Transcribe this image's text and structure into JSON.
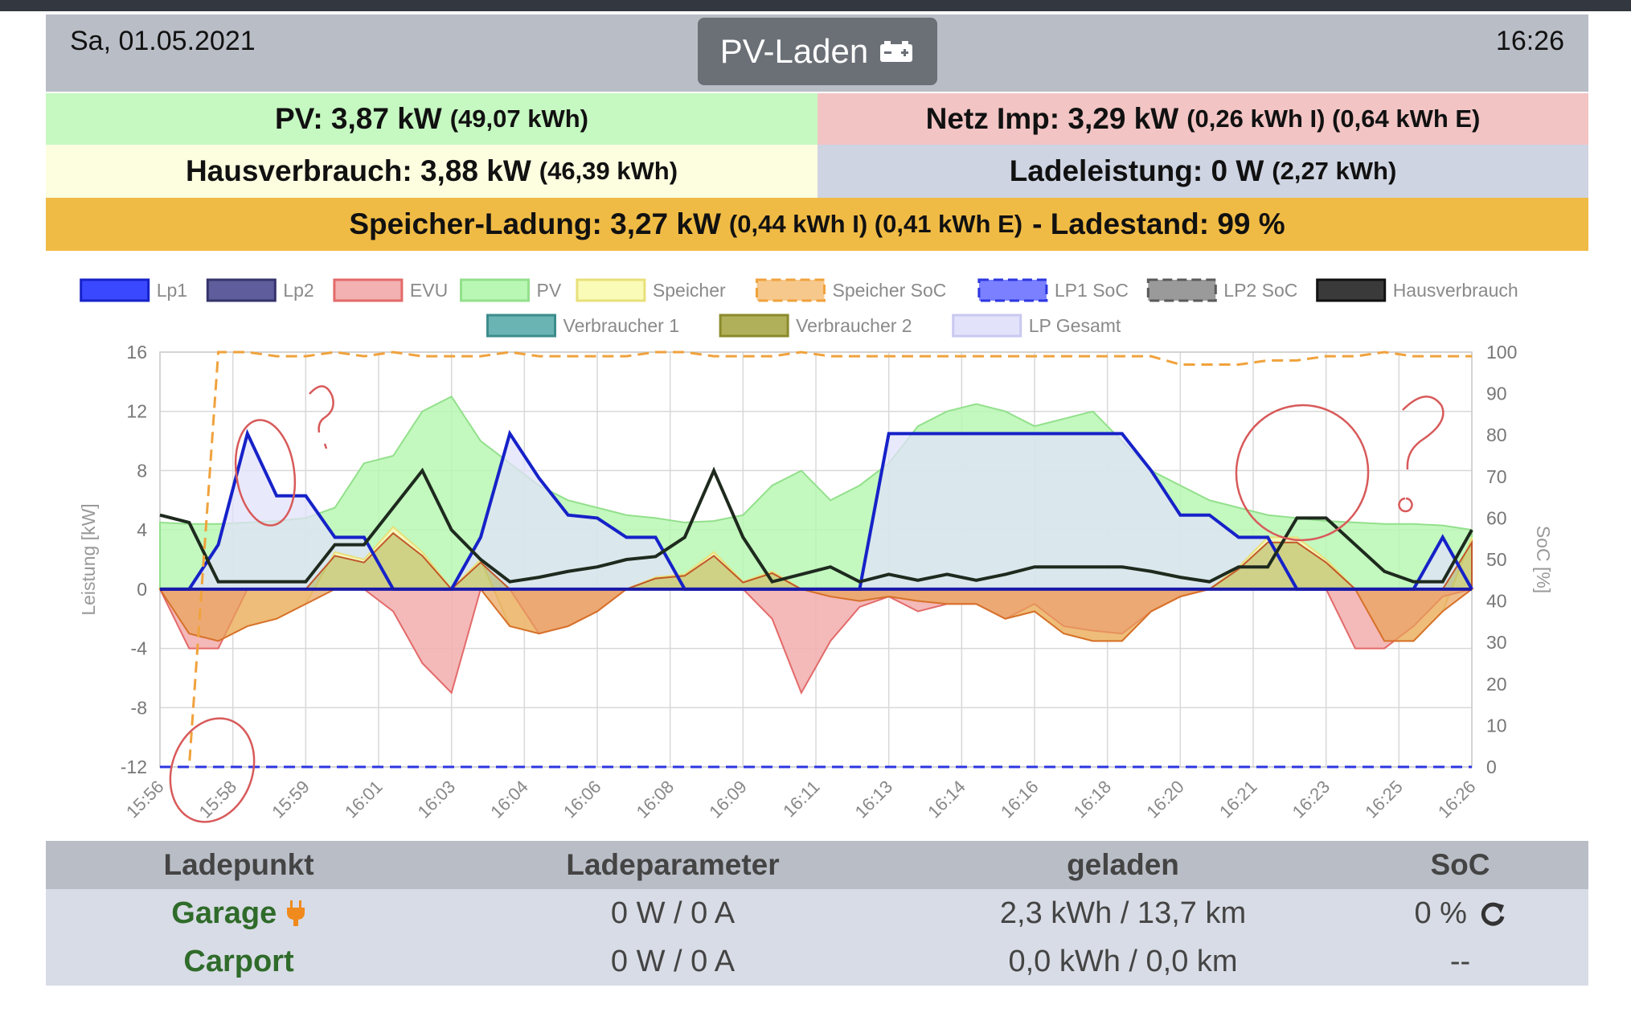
{
  "header": {
    "date": "Sa, 01.05.2021",
    "time": "16:26",
    "mode_label": "PV-Laden",
    "mode_icon": "battery-icon"
  },
  "status": {
    "pv_label": "PV: 3,87 kW",
    "pv_energy": "(49,07 kWh)",
    "netz_label": "Netz Imp: 3,29 kW",
    "netz_energy": "(0,26 kWh I) (0,64 kWh E)",
    "haus_label": "Hausverbrauch: 3,88 kW",
    "haus_energy": "(46,39 kWh)",
    "lade_label": "Ladeleistung: 0 W",
    "lade_energy": "(2,27 kWh)",
    "speicher_label": "Speicher-Ladung: 3,27 kW",
    "speicher_energy": "(0,44 kWh I) (0,41 kWh E)",
    "speicher_suffix": "- Ladestand: 99 %"
  },
  "colors": {
    "pv": "#c6f8c1",
    "netz": "#f2c4c4",
    "haus": "#fdfde0",
    "lade": "#cfd4e2",
    "speicher": "#f0bb45",
    "header": "#b9bdc6",
    "ladepunkt_green": "#2f6b2a",
    "plug_orange": "#f08a1c"
  },
  "chart_data": {
    "type": "area",
    "ylabel": "Leistung [kW]",
    "y2label": "SoC [%]",
    "ylim": [
      -12,
      16
    ],
    "y2lim": [
      0,
      100
    ],
    "yticks": [
      16,
      12,
      8,
      4,
      0,
      -4,
      -8,
      -12
    ],
    "y2ticks": [
      100,
      90,
      80,
      70,
      60,
      50,
      40,
      30,
      20,
      10,
      0
    ],
    "xticks": [
      "15:56",
      "15:58",
      "15:59",
      "16:01",
      "16:03",
      "16:04",
      "16:06",
      "16:08",
      "16:09",
      "16:11",
      "16:13",
      "16:14",
      "16:16",
      "16:18",
      "16:20",
      "16:21",
      "16:23",
      "16:25",
      "16:26"
    ],
    "legend": [
      {
        "name": "Lp1",
        "fill": "#3a48ff",
        "border": "#1622c8",
        "dashed": false
      },
      {
        "name": "Lp2",
        "fill": "#5f5d9c",
        "border": "#35346b",
        "dashed": false
      },
      {
        "name": "EVU",
        "fill": "#f3b1b1",
        "border": "#e36a6a",
        "dashed": false
      },
      {
        "name": "PV",
        "fill": "#b9f7b4",
        "border": "#93e08c",
        "dashed": false
      },
      {
        "name": "Speicher",
        "fill": "#fbfbb8",
        "border": "#e8e07a",
        "dashed": false
      },
      {
        "name": "Speicher SoC",
        "fill": "#f6c88c",
        "border": "#f0a23c",
        "dashed": true
      },
      {
        "name": "LP1 SoC",
        "fill": "#7a80ff",
        "border": "#2c36e0",
        "dashed": true
      },
      {
        "name": "LP2 SoC",
        "fill": "#9a9a9a",
        "border": "#5a5a5a",
        "dashed": true
      },
      {
        "name": "Hausverbrauch",
        "fill": "#3a3a3a",
        "border": "#111111",
        "dashed": false
      },
      {
        "name": "Verbraucher 1",
        "fill": "#6ab4b4",
        "border": "#3d8c8c",
        "dashed": false
      },
      {
        "name": "Verbraucher 2",
        "fill": "#b0b05a",
        "border": "#8a8a2c",
        "dashed": false
      },
      {
        "name": "LP Gesamt",
        "fill": "#e2e2fb",
        "border": "#c9c9f0",
        "dashed": false
      }
    ],
    "x": [
      0,
      2,
      4,
      6,
      8,
      10,
      12,
      14,
      16,
      18,
      20,
      22,
      24,
      26,
      28,
      30,
      32,
      34,
      36,
      38,
      40,
      42,
      44,
      46,
      48,
      50,
      52,
      54,
      56,
      58,
      60,
      62,
      64,
      66,
      68,
      70,
      72,
      74,
      76,
      78,
      80,
      82,
      84,
      86,
      88,
      90
    ],
    "series": [
      {
        "name": "PV",
        "values": [
          4.5,
          4.4,
          4.4,
          4.5,
          4.6,
          4.8,
          5.5,
          8.5,
          9,
          12,
          13,
          10,
          8.5,
          7,
          6,
          5.5,
          5,
          4.8,
          4.5,
          4.6,
          5,
          7,
          8,
          6,
          7,
          8.5,
          11,
          12,
          12.5,
          12,
          11,
          11.5,
          12,
          10,
          8,
          7,
          6,
          5.5,
          5,
          4.8,
          4.6,
          4.5,
          4.4,
          4.4,
          4.3,
          4.0
        ]
      },
      {
        "name": "Lp1",
        "values": [
          0,
          0,
          3,
          10.5,
          6.3,
          6.3,
          3.5,
          3.5,
          0,
          0,
          0,
          3.5,
          10.5,
          7.5,
          5,
          4.8,
          3.5,
          3.5,
          0,
          0,
          0,
          0,
          0,
          0,
          0,
          10.5,
          10.5,
          10.5,
          10.5,
          10.5,
          10.5,
          10.5,
          10.5,
          10.5,
          8,
          5,
          5,
          3.5,
          3.5,
          0,
          0,
          0,
          0,
          0,
          3.5,
          0
        ]
      },
      {
        "name": "EVU",
        "values": [
          0,
          -4,
          -4,
          0,
          0,
          0,
          0,
          0,
          -1.5,
          -5,
          -7,
          0,
          0,
          -3,
          -2.5,
          -1.5,
          0,
          0,
          0,
          0,
          0,
          -2,
          -7,
          -3.5,
          -1.2,
          -0.5,
          -1.5,
          -1,
          -1,
          -2,
          -1,
          -2.5,
          -2.8,
          -3,
          -1.5,
          -0.5,
          0,
          0,
          0,
          0,
          0,
          -4,
          -4,
          -2.5,
          -0.5,
          0
        ]
      },
      {
        "name": "Speicher",
        "values": [
          0,
          -3,
          -3.5,
          -2.5,
          -2,
          -1,
          2.5,
          2,
          4.2,
          2.5,
          0,
          2,
          -2.5,
          -3,
          -2.5,
          -1.5,
          0,
          0.8,
          1,
          2.5,
          0.5,
          1.2,
          0,
          -0.5,
          -0.8,
          -0.5,
          -0.8,
          -1,
          -1,
          -2,
          -1.5,
          -3,
          -3.5,
          -3.5,
          -1.5,
          -0.5,
          0,
          1.5,
          3.5,
          3.5,
          2,
          0,
          -3.5,
          -3.5,
          -1.5,
          3.5
        ]
      },
      {
        "name": "Hausverbrauch",
        "values": [
          5,
          4.5,
          0.5,
          0.5,
          0.5,
          0.5,
          3,
          3,
          5.5,
          8,
          4,
          2,
          0.5,
          0.8,
          1.2,
          1.5,
          2,
          2.2,
          3.5,
          8,
          3.5,
          0.5,
          1,
          1.5,
          0.5,
          1,
          0.6,
          1,
          0.6,
          1,
          1.5,
          1.5,
          1.5,
          1.5,
          1.2,
          0.8,
          0.5,
          1.5,
          1.5,
          4.8,
          4.8,
          3,
          1.2,
          0.5,
          0.5,
          4
        ]
      },
      {
        "name": "Speicher SoC",
        "values": [
          0,
          0,
          100,
          100,
          99,
          99,
          100,
          99,
          100,
          99,
          99,
          99,
          100,
          99,
          99,
          99,
          99,
          100,
          100,
          99,
          99,
          99,
          100,
          99,
          99,
          99,
          99,
          99,
          99,
          99,
          99,
          99,
          99,
          99,
          99,
          97,
          97,
          97,
          98,
          98,
          99,
          99,
          100,
          99,
          99,
          99
        ]
      },
      {
        "name": "LP1 SoC",
        "values": [
          0,
          0,
          0,
          0,
          0,
          0,
          0,
          0,
          0,
          0,
          0,
          0,
          0,
          0,
          0,
          0,
          0,
          0,
          0,
          0,
          0,
          0,
          0,
          0,
          0,
          0,
          0,
          0,
          0,
          0,
          0,
          0,
          0,
          0,
          0,
          0,
          0,
          0,
          0,
          0,
          0,
          0,
          0,
          0,
          0,
          0
        ]
      }
    ]
  },
  "table": {
    "headers": [
      "Ladepunkt",
      "Ladeparameter",
      "geladen",
      "SoC"
    ],
    "rows": [
      {
        "name": "Garage",
        "params": "0 W / 0 A",
        "charged": "2,3 kWh / 13,7 km",
        "soc": "0 %",
        "icon": "plug-icon",
        "soc_icon": "refresh-icon"
      },
      {
        "name": "Carport",
        "params": "0 W / 0 A",
        "charged": "0,0 kWh / 0,0 km",
        "soc": "--"
      }
    ]
  }
}
